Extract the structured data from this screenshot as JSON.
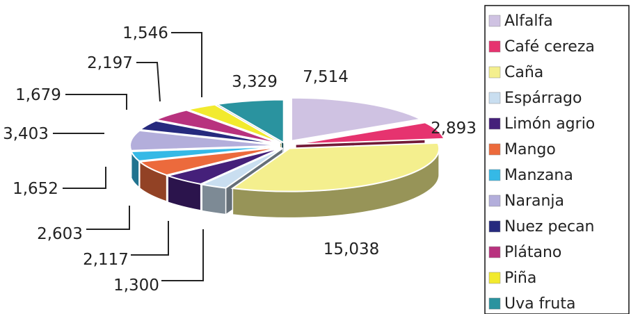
{
  "chart_data": {
    "type": "pie",
    "style": "3d-exploded",
    "legend_position": "right",
    "categories": [
      "Alfalfa",
      "Café cereza",
      "Caña",
      "Espárrago",
      "Limón agrio",
      "Mango",
      "Manzana",
      "Naranja",
      "Nuez pecan",
      "Plátano",
      "Piña",
      "Uva fruta"
    ],
    "values": [
      7514,
      2893,
      15038,
      1300,
      2117,
      2603,
      1652,
      3403,
      1679,
      2197,
      1546,
      3329
    ],
    "data_labels": [
      "7,514",
      "2,893",
      "15,038",
      "1,300",
      "2,117",
      "2,603",
      "1,652",
      "3,403",
      "1,679",
      "2,197",
      "1,546",
      "3,329"
    ],
    "colors": [
      "#cfc2e2",
      "#e6336f",
      "#f4ef8e",
      "#c9def0",
      "#45207a",
      "#ec6a3c",
      "#35b9e6",
      "#b3aedb",
      "#262a7e",
      "#b8327e",
      "#f2ea2e",
      "#2a939f"
    ]
  }
}
